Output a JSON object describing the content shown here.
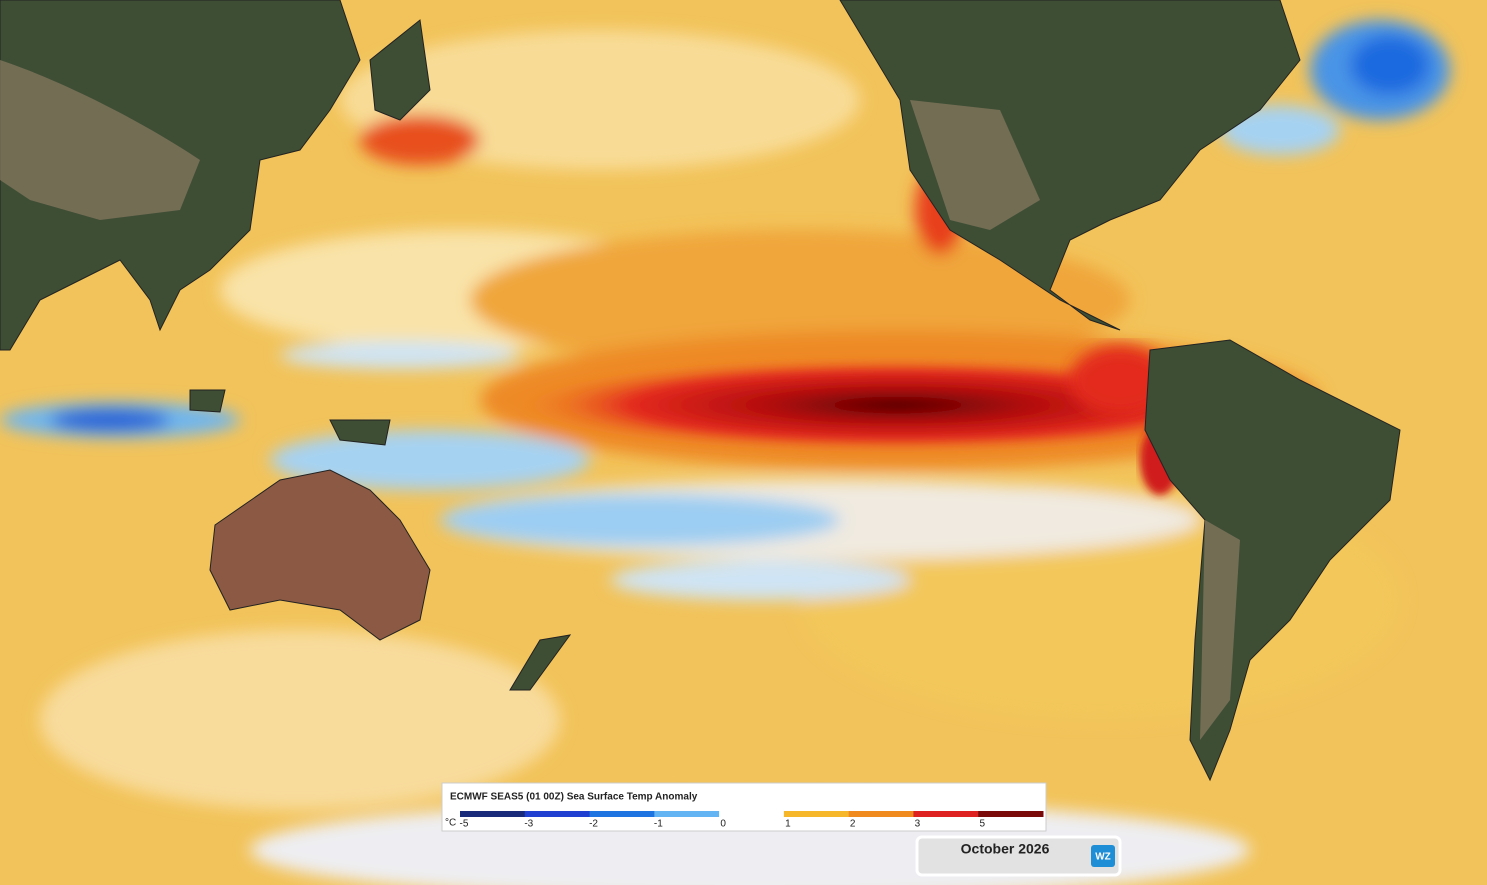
{
  "legend": {
    "title": "ECMWF SEAS5 (01 00Z) Sea Surface Temp Anomaly",
    "unit": "°C",
    "ticks": [
      -5,
      -3,
      -2,
      -1,
      0,
      1,
      2,
      3,
      5
    ],
    "colors": [
      "#1a2a7a",
      "#1f40d0",
      "#1e74e0",
      "#62b4f2",
      "#ffffff",
      "#f6b82a",
      "#f08a1e",
      "#de2222",
      "#7a0a0a"
    ]
  },
  "date_label": "October 2026",
  "logo": "WZ"
}
